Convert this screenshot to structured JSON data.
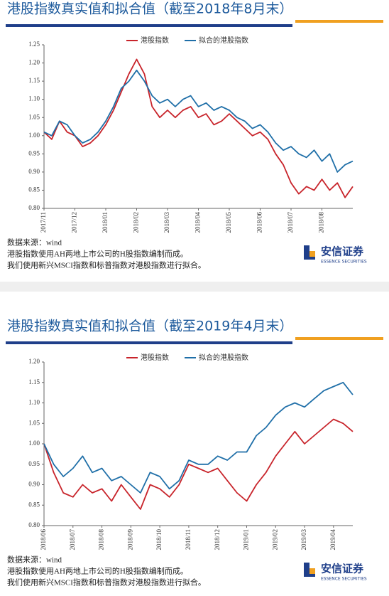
{
  "chart_data": [
    {
      "type": "line",
      "title": "港股指数真实值和拟合值（截至2018年8月末）",
      "categories": [
        "2017/11",
        null,
        null,
        null,
        "2017/12",
        null,
        null,
        null,
        "2018/01",
        null,
        null,
        null,
        "2018/02",
        null,
        null,
        null,
        "2018/03",
        null,
        null,
        null,
        "2018/04",
        null,
        null,
        null,
        "2018/05",
        null,
        null,
        null,
        "2018/06",
        null,
        null,
        null,
        "2018/07",
        null,
        null,
        null,
        "2018/08",
        null,
        null,
        null,
        null
      ],
      "series": [
        {
          "name": "港股指数",
          "color": "#c8242b",
          "values": [
            1.01,
            0.99,
            1.04,
            1.01,
            1.0,
            0.97,
            0.98,
            1.0,
            1.03,
            1.07,
            1.12,
            1.17,
            1.21,
            1.17,
            1.08,
            1.05,
            1.07,
            1.05,
            1.07,
            1.08,
            1.05,
            1.06,
            1.03,
            1.04,
            1.06,
            1.04,
            1.02,
            1.0,
            1.01,
            0.99,
            0.95,
            0.92,
            0.87,
            0.84,
            0.86,
            0.85,
            0.88,
            0.85,
            0.87,
            0.83,
            0.86
          ]
        },
        {
          "name": "拟合的港股指数",
          "color": "#1f6fa8",
          "values": [
            1.01,
            1.0,
            1.04,
            1.03,
            1.0,
            0.98,
            0.99,
            1.01,
            1.04,
            1.08,
            1.13,
            1.15,
            1.18,
            1.15,
            1.11,
            1.09,
            1.1,
            1.08,
            1.1,
            1.11,
            1.08,
            1.09,
            1.07,
            1.08,
            1.07,
            1.05,
            1.04,
            1.02,
            1.03,
            1.01,
            0.98,
            0.96,
            0.97,
            0.95,
            0.94,
            0.96,
            0.93,
            0.95,
            0.9,
            0.92,
            0.93
          ]
        }
      ],
      "ylim": [
        0.8,
        1.25
      ],
      "yticks": [
        {
          "value": 0.8,
          "label": "0.80"
        },
        0.85,
        {
          "value": 0.9,
          "label": "0.90"
        },
        0.95,
        {
          "value": 1.0,
          "label": "1.00"
        },
        1.05,
        {
          "value": 1.1,
          "label": "1.10"
        },
        1.15,
        {
          "value": 1.2,
          "label": "1.20"
        },
        1.25
      ],
      "source": [
        "数据来源：wind",
        "港股指数使用AH两地上市公司的H股指数编制而成。",
        "我们使用新兴MSCI指数和标普指数对港股指数进行拟合。"
      ],
      "logo": {
        "name": "安信证券",
        "subtitle": "ESSENCE SECURITIES"
      }
    },
    {
      "type": "line",
      "title": "港股指数真实值和拟合值（截至2019年4月末）",
      "categories": [
        "2018/06",
        null,
        null,
        "2018/07",
        null,
        null,
        "2018/08",
        null,
        null,
        "2018/09",
        null,
        null,
        "2018/10",
        null,
        null,
        "2018/11",
        null,
        null,
        "2018/12",
        null,
        null,
        "2019/01",
        null,
        null,
        "2019/02",
        null,
        null,
        "2019/03",
        null,
        null,
        "2019/04",
        null,
        null
      ],
      "series": [
        {
          "name": "港股指数",
          "color": "#c8242b",
          "values": [
            1.0,
            0.93,
            0.88,
            0.87,
            0.9,
            0.88,
            0.89,
            0.86,
            0.9,
            0.87,
            0.84,
            0.9,
            0.89,
            0.87,
            0.9,
            0.95,
            0.94,
            0.93,
            0.94,
            0.91,
            0.88,
            0.86,
            0.9,
            0.93,
            0.97,
            1.0,
            1.03,
            1.0,
            1.02,
            1.04,
            1.06,
            1.05,
            1.03
          ]
        },
        {
          "name": "拟合的港股指数",
          "color": "#1f6fa8",
          "values": [
            1.0,
            0.95,
            0.92,
            0.94,
            0.97,
            0.93,
            0.94,
            0.91,
            0.92,
            0.9,
            0.88,
            0.93,
            0.92,
            0.89,
            0.91,
            0.96,
            0.95,
            0.95,
            0.97,
            0.96,
            0.98,
            0.98,
            1.02,
            1.04,
            1.07,
            1.09,
            1.1,
            1.09,
            1.11,
            1.13,
            1.14,
            1.15,
            1.12
          ]
        }
      ],
      "ylim": [
        0.8,
        1.2
      ],
      "yticks": [
        {
          "value": 0.8,
          "label": "0.80"
        },
        0.85,
        {
          "value": 0.9,
          "label": "0.90"
        },
        0.95,
        {
          "value": 1.0,
          "label": "1.00"
        },
        1.05,
        {
          "value": 1.1,
          "label": "1.10"
        },
        1.15,
        {
          "value": 1.2,
          "label": "1.20"
        }
      ],
      "source": [
        "数据来源：wind",
        "港股指数使用AH两地上市公司的H股指数编制而成。",
        "我们使用新兴MSCI指数和标普指数对港股指数进行拟合。"
      ],
      "logo": {
        "name": "安信证券",
        "subtitle": "ESSENCE SECURITIES"
      }
    }
  ]
}
